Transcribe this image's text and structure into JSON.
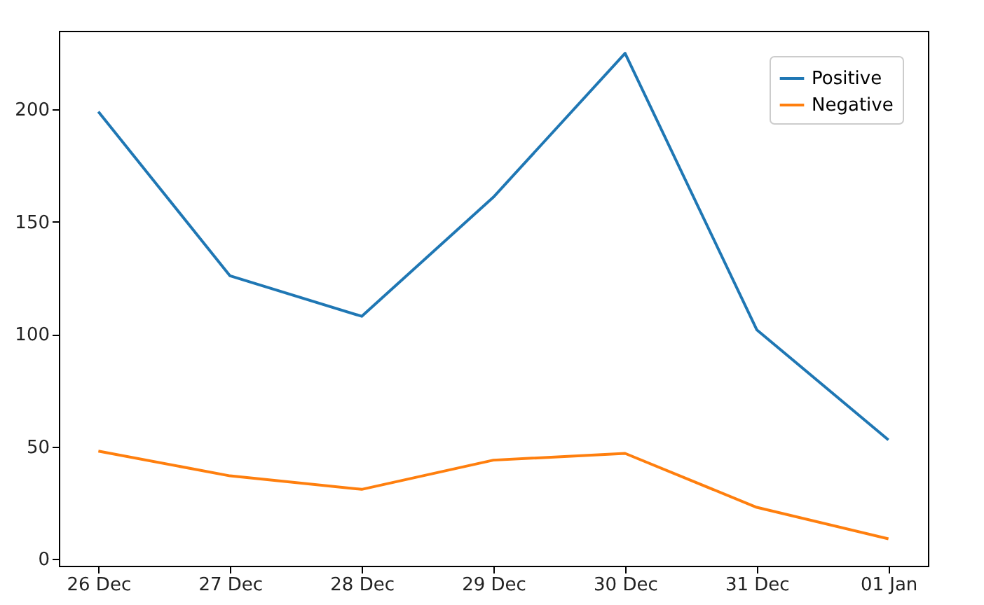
{
  "chart_data": {
    "type": "line",
    "categories": [
      "26 Dec",
      "27 Dec",
      "28 Dec",
      "29 Dec",
      "30 Dec",
      "31 Dec",
      "01 Jan"
    ],
    "series": [
      {
        "name": "Positive",
        "color": "#1f77b4",
        "values": [
          199,
          126,
          108,
          161,
          225,
          102,
          53
        ]
      },
      {
        "name": "Negative",
        "color": "#ff7f0e",
        "values": [
          48,
          37,
          31,
          44,
          47,
          23,
          9
        ]
      }
    ],
    "ylim": [
      -3,
      235
    ],
    "yticks": [
      0,
      50,
      100,
      150,
      200
    ],
    "grid": false,
    "legend": "top right"
  }
}
